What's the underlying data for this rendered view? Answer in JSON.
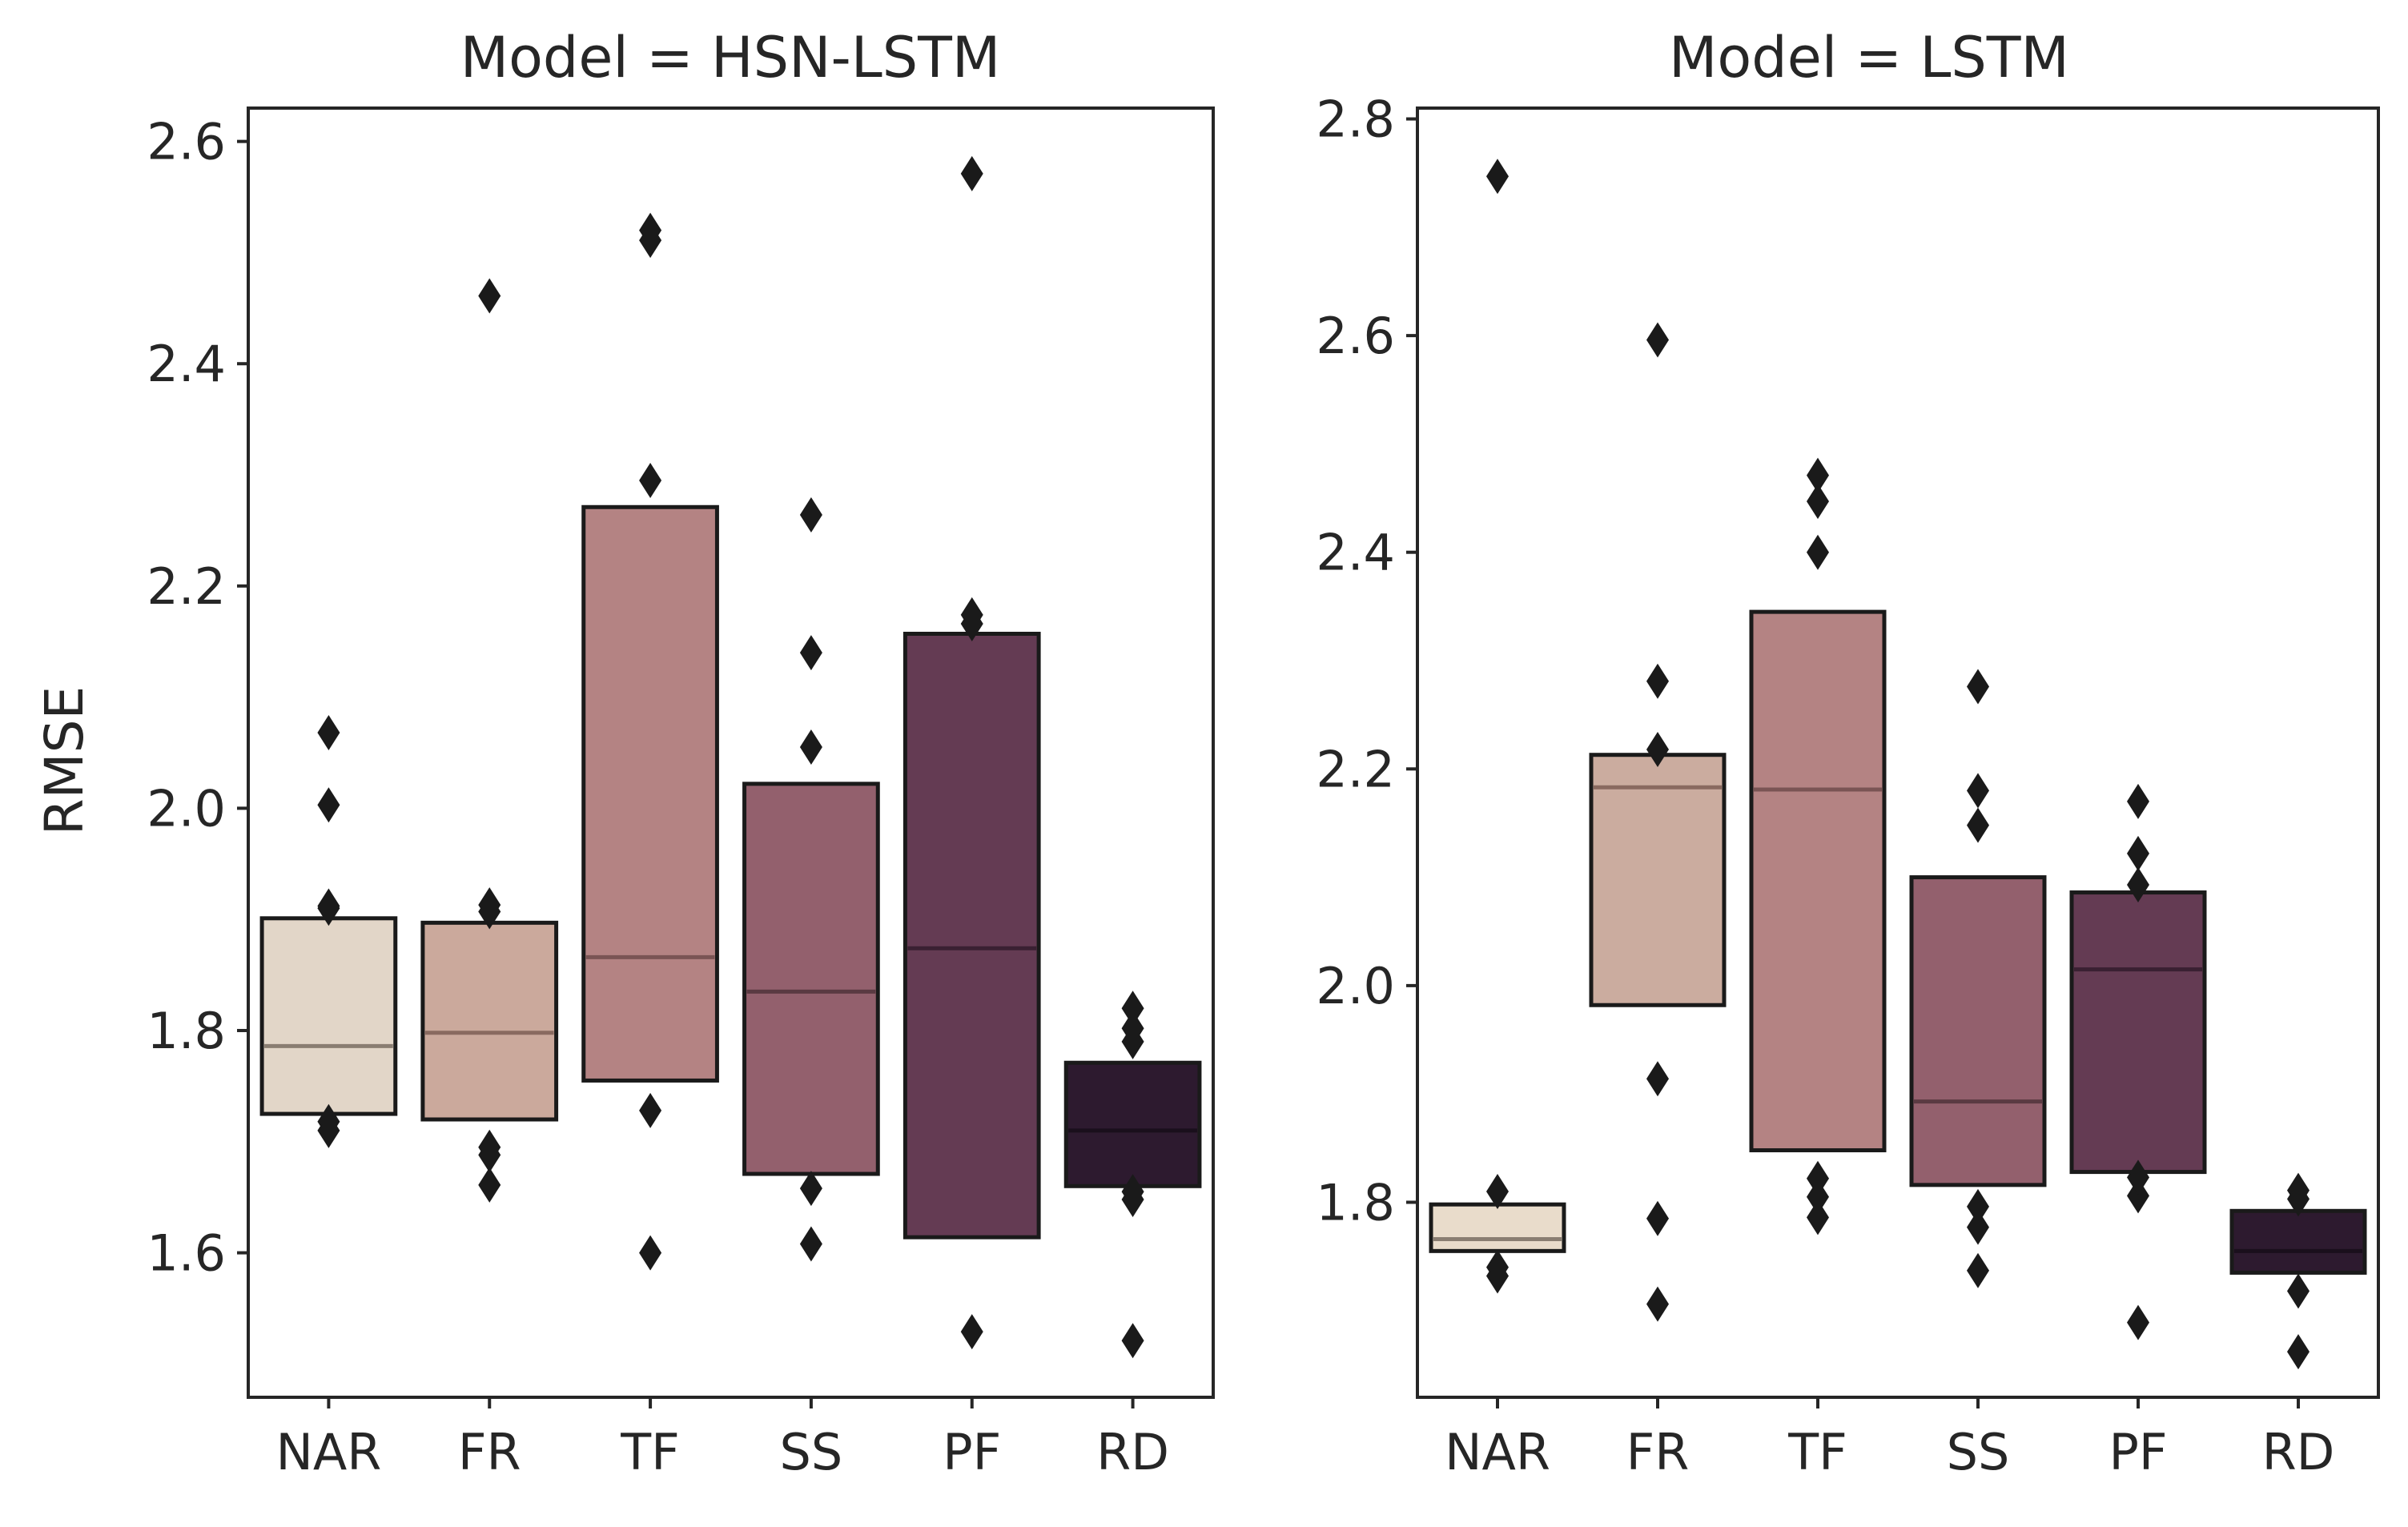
{
  "chart_data": [
    {
      "type": "boxen",
      "title": "Model = HSN-LSTM",
      "xlabel": "",
      "ylabel": "RMSE",
      "ylim": [
        1.47,
        2.63
      ],
      "yticks": [
        "1.6",
        "1.8",
        "2.0",
        "2.2",
        "2.4",
        "2.6"
      ],
      "categories": [
        "NAR",
        "FR",
        "TF",
        "SS",
        "PF",
        "RD"
      ],
      "colors": [
        "#e2d6c8",
        "#cba99c",
        "#b48383",
        "#93606d",
        "#643b53",
        "#2d1a2f"
      ],
      "median_colors": [
        "#8a7e72",
        "#8a6a60",
        "#7a5454",
        "#5a3a42",
        "#3a2032",
        "#1a0f1c"
      ],
      "boxes": [
        {
          "low": 1.725,
          "high": 1.901,
          "median": 1.786,
          "outliers": [
            1.71,
            1.718,
            1.91,
            1.912,
            2.003,
            2.068
          ]
        },
        {
          "low": 1.72,
          "high": 1.897,
          "median": 1.798,
          "outliers": [
            1.661,
            1.688,
            1.695,
            1.907,
            1.913,
            2.461
          ]
        },
        {
          "low": 1.755,
          "high": 2.271,
          "median": 1.866,
          "outliers": [
            1.6,
            1.728,
            2.295,
            2.511,
            2.52
          ]
        },
        {
          "low": 1.671,
          "high": 2.022,
          "median": 1.835,
          "outliers": [
            1.608,
            1.658,
            2.055,
            2.14,
            2.264
          ]
        },
        {
          "low": 1.614,
          "high": 2.157,
          "median": 1.874,
          "outliers": [
            1.529,
            2.166,
            2.174,
            2.571
          ]
        },
        {
          "low": 1.66,
          "high": 1.771,
          "median": 1.71,
          "outliers": [
            1.521,
            1.648,
            1.655,
            1.79,
            1.802,
            1.82
          ]
        }
      ]
    },
    {
      "type": "boxen",
      "title": "Model = LSTM",
      "xlabel": "",
      "ylabel": "",
      "ylim": [
        1.62,
        2.81
      ],
      "yticks": [
        "1.8",
        "2.0",
        "2.2",
        "2.4",
        "2.6",
        "2.8"
      ],
      "categories": [
        "NAR",
        "FR",
        "TF",
        "SS",
        "PF",
        "RD"
      ],
      "colors": [
        "#e9dccb",
        "#cbac9f",
        "#b48383",
        "#93606d",
        "#643b53",
        "#2d1a2f"
      ],
      "median_colors": [
        "#8a7e72",
        "#8a6a60",
        "#7a5454",
        "#5a3a42",
        "#3a2032",
        "#1a0f1c"
      ],
      "boxes": [
        {
          "low": 1.755,
          "high": 1.798,
          "median": 1.766,
          "outliers": [
            1.732,
            1.74,
            1.81,
            2.747
          ]
        },
        {
          "low": 1.982,
          "high": 2.213,
          "median": 2.183,
          "outliers": [
            1.706,
            1.785,
            1.914,
            2.218,
            2.281,
            2.596
          ]
        },
        {
          "low": 1.848,
          "high": 2.345,
          "median": 2.181,
          "outliers": [
            1.786,
            1.805,
            1.822,
            2.4,
            2.447,
            2.471
          ]
        },
        {
          "low": 1.816,
          "high": 2.1,
          "median": 1.893,
          "outliers": [
            1.737,
            1.777,
            1.796,
            2.148,
            2.18,
            2.276
          ]
        },
        {
          "low": 1.828,
          "high": 2.086,
          "median": 2.015,
          "outliers": [
            1.689,
            1.806,
            1.823,
            2.093,
            2.122,
            2.17
          ]
        },
        {
          "low": 1.735,
          "high": 1.792,
          "median": 1.755,
          "outliers": [
            1.662,
            1.718,
            1.803,
            1.811
          ]
        }
      ]
    }
  ]
}
